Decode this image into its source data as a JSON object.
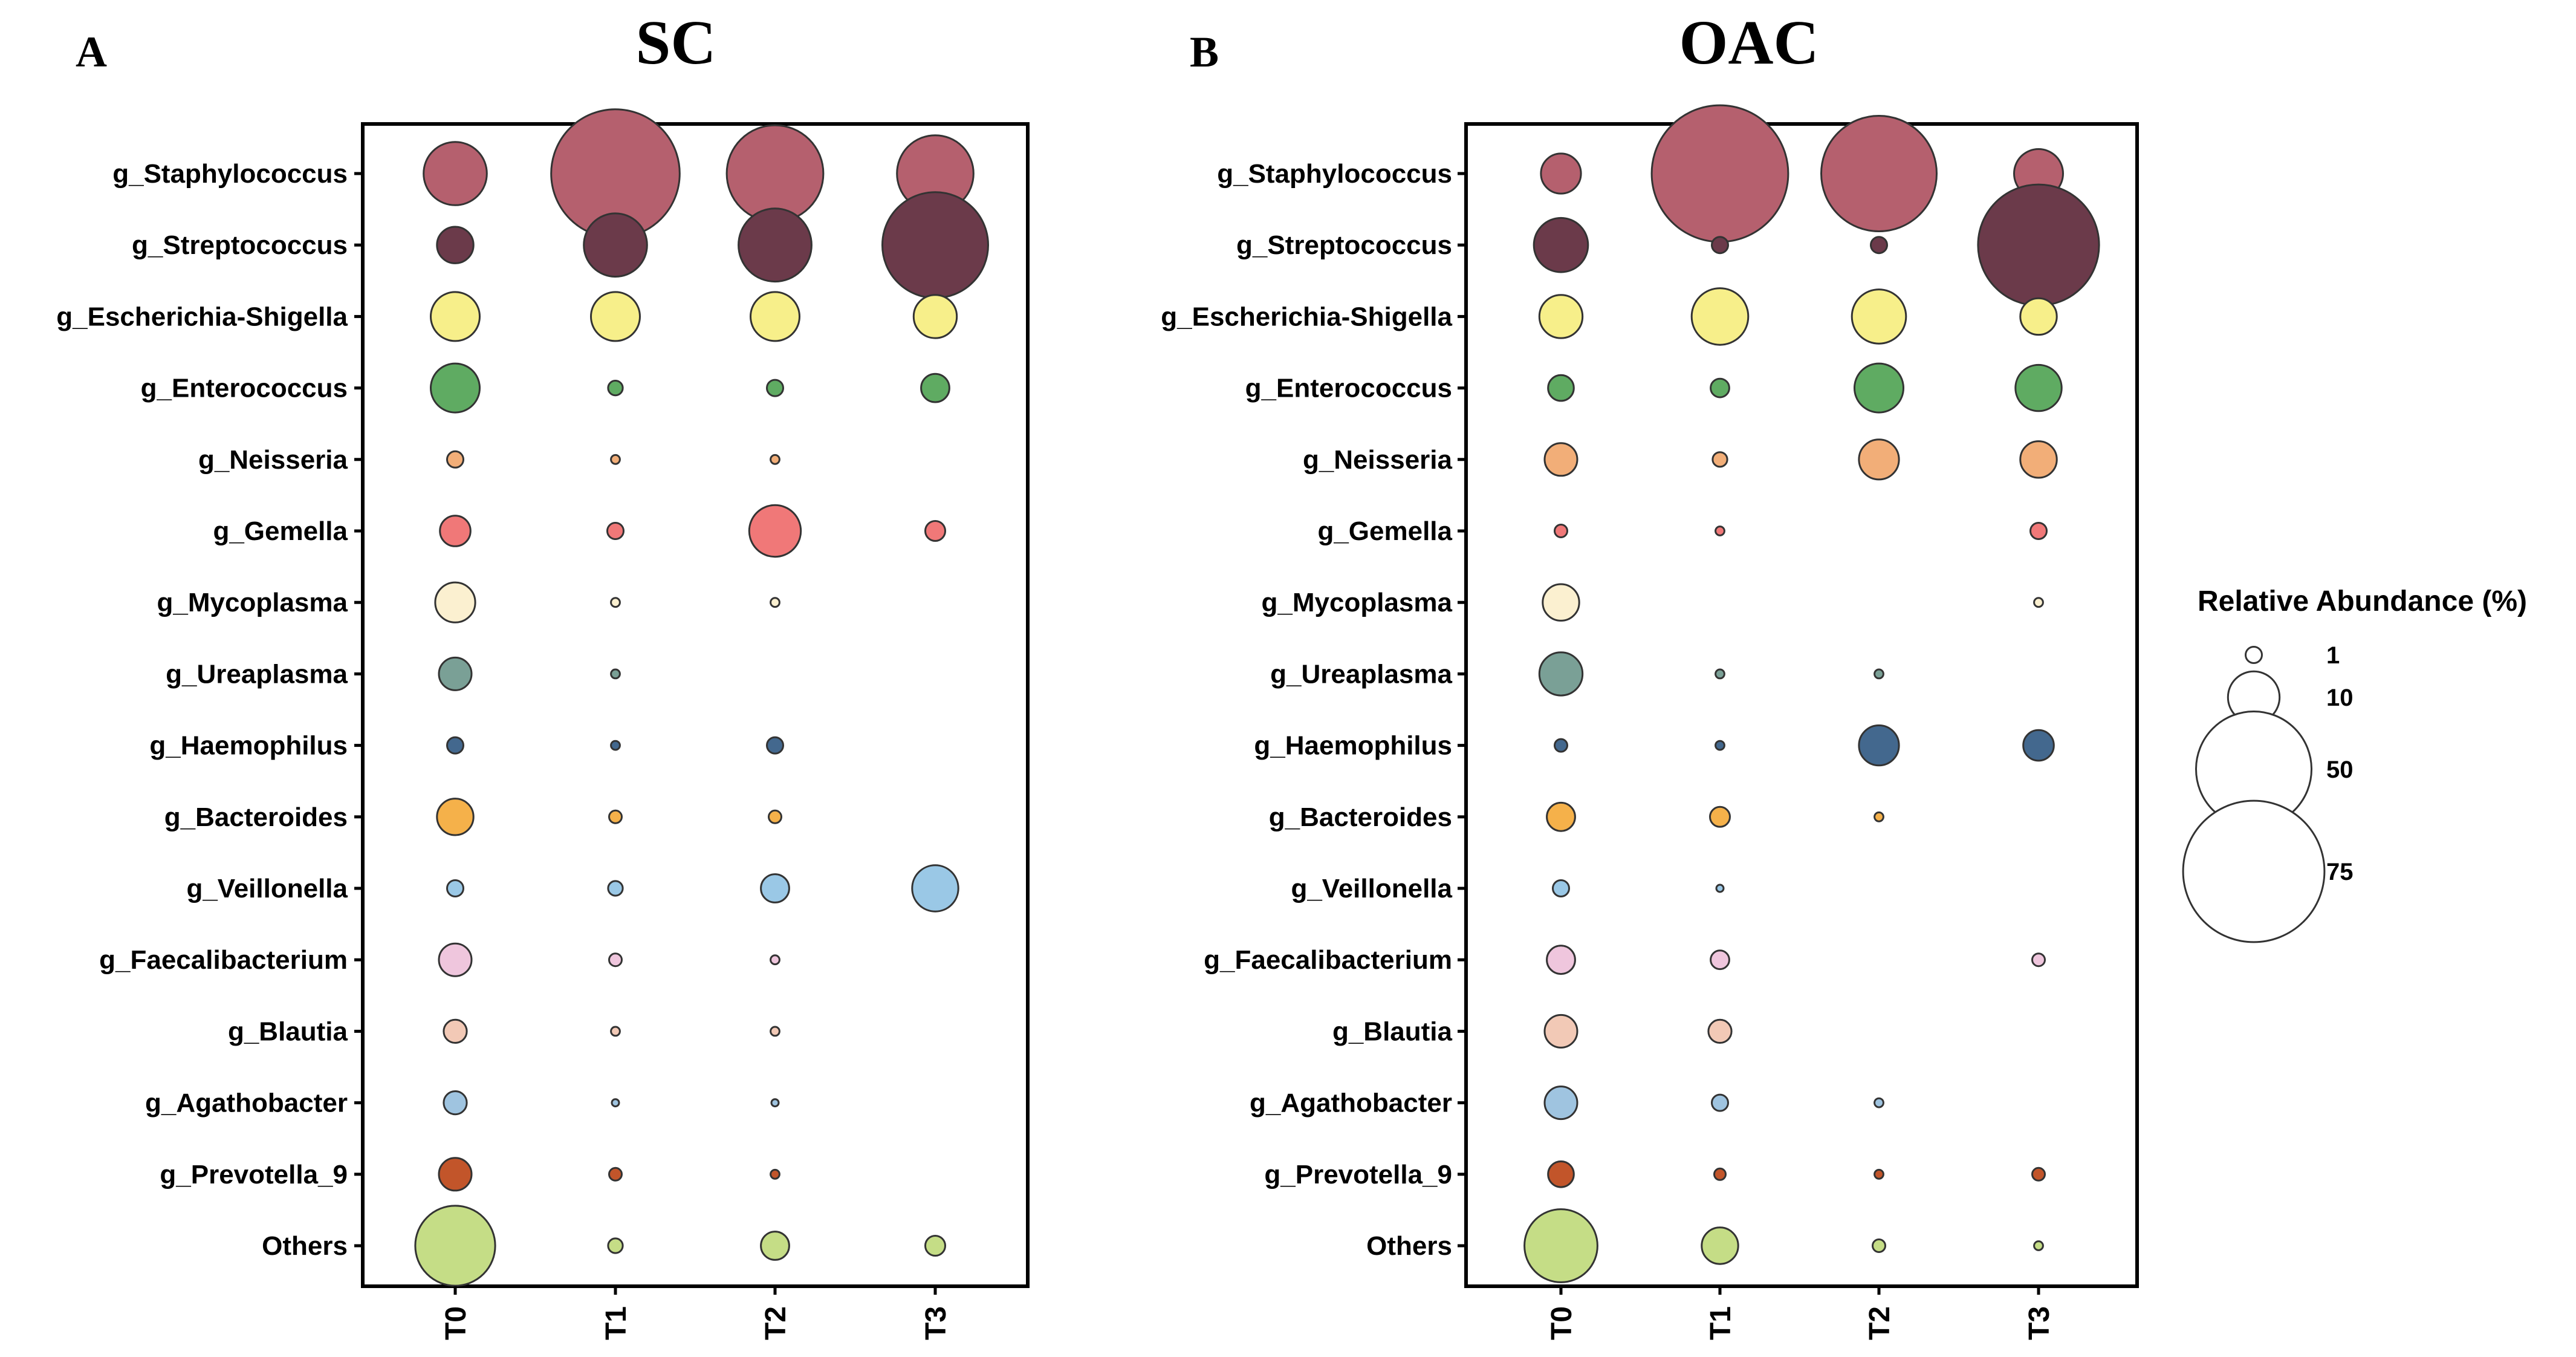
{
  "chart_data": [
    {
      "type": "scatter",
      "panel_label": "A",
      "title": "SC",
      "x": [
        "T0",
        "T1",
        "T2",
        "T3"
      ],
      "y": [
        "g_Staphylococcus",
        "g_Streptococcus",
        "g_Escherichia-Shigella",
        "g_Enterococcus",
        "g_Neisseria",
        "g_Gemella",
        "g_Mycoplasma",
        "g_Ureaplasma",
        "g_Haemophilus",
        "g_Bacteroides",
        "g_Veillonella",
        "g_Faecalibacterium",
        "g_Blautia",
        "g_Agathobacter",
        "g_Prevotella_9",
        "Others"
      ],
      "values": [
        [
          15,
          62,
          35,
          22
        ],
        [
          5,
          15,
          20,
          42
        ],
        [
          9,
          9,
          9,
          7
        ],
        [
          9,
          0.8,
          1,
          3
        ],
        [
          1,
          0.3,
          0.3,
          0
        ],
        [
          3.5,
          1,
          10,
          1.5
        ],
        [
          6,
          0.3,
          0.3,
          0
        ],
        [
          4,
          0.3,
          0,
          0
        ],
        [
          1,
          0.3,
          1,
          0
        ],
        [
          5,
          0.6,
          0.6,
          0
        ],
        [
          1,
          0.8,
          3,
          8
        ],
        [
          4,
          0.6,
          0.3,
          0
        ],
        [
          2,
          0.3,
          0.3,
          0
        ],
        [
          2,
          0.2,
          0.2,
          0
        ],
        [
          4,
          0.6,
          0.3,
          0
        ],
        [
          24,
          0.8,
          3,
          1.5
        ]
      ]
    },
    {
      "type": "scatter",
      "panel_label": "B",
      "title": "OAC",
      "x": [
        "T0",
        "T1",
        "T2",
        "T3"
      ],
      "y": [
        "g_Staphylococcus",
        "g_Streptococcus",
        "g_Escherichia-Shigella",
        "g_Enterococcus",
        "g_Neisseria",
        "g_Gemella",
        "g_Mycoplasma",
        "g_Ureaplasma",
        "g_Haemophilus",
        "g_Bacteroides",
        "g_Veillonella",
        "g_Faecalibacterium",
        "g_Blautia",
        "g_Agathobacter",
        "g_Prevotella_9",
        "Others"
      ],
      "values": [
        [
          6,
          70,
          50,
          9
        ],
        [
          11,
          1,
          1,
          55
        ],
        [
          7,
          12,
          11,
          5
        ],
        [
          2.5,
          1.3,
          9,
          8
        ],
        [
          4,
          0.8,
          6,
          5
        ],
        [
          0.6,
          0.3,
          0,
          1
        ],
        [
          5,
          0,
          0,
          0.3
        ],
        [
          7,
          0.3,
          0.3,
          0
        ],
        [
          0.6,
          0.3,
          6,
          3.5
        ],
        [
          3,
          1.5,
          0.3,
          0
        ],
        [
          1,
          0.2,
          0,
          0
        ],
        [
          3,
          1.3,
          0,
          0.6
        ],
        [
          4,
          2,
          0,
          0
        ],
        [
          4,
          1,
          0.3,
          0
        ],
        [
          2.5,
          0.5,
          0.3,
          0.6
        ],
        [
          20,
          5,
          0.6,
          0.3
        ]
      ]
    }
  ],
  "colors": [
    "#b5606e",
    "#6b3a4a",
    "#f7ef8a",
    "#5fab62",
    "#f2ae78",
    "#f07878",
    "#fbf0d0",
    "#7aa096",
    "#43688e",
    "#f5b14a",
    "#9ac8e6",
    "#efc6dd",
    "#f2c9b6",
    "#9fc4e0",
    "#c2552a",
    "#c5dd86"
  ],
  "legend": {
    "title": "Relative Abundance (%)",
    "items": [
      {
        "label": "1",
        "value": 1
      },
      {
        "label": "10",
        "value": 10
      },
      {
        "label": "50",
        "value": 50
      },
      {
        "label": "75",
        "value": 75
      }
    ]
  }
}
